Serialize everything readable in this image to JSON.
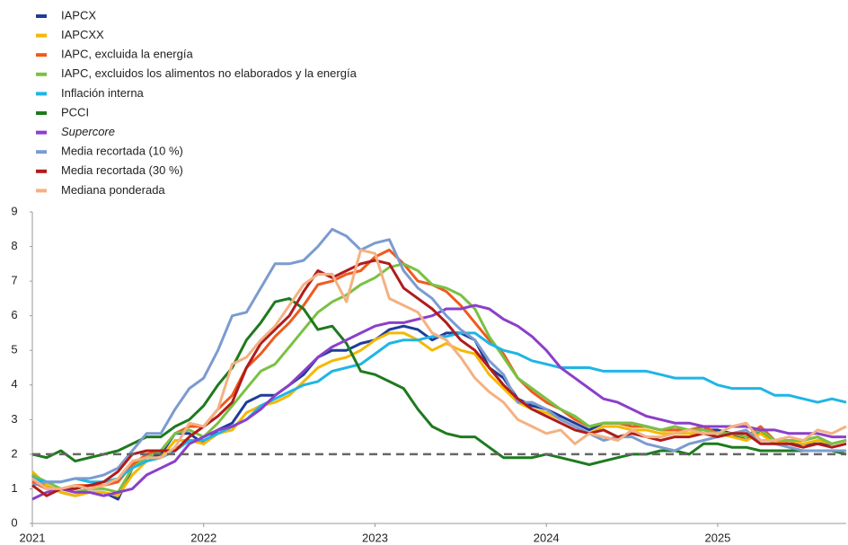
{
  "chart_data": {
    "type": "line",
    "categories": [
      "2021",
      null,
      null,
      null,
      null,
      null,
      null,
      null,
      null,
      null,
      null,
      null,
      "2022",
      null,
      null,
      null,
      null,
      null,
      null,
      null,
      null,
      null,
      null,
      null,
      "2023",
      null,
      null,
      null,
      null,
      null,
      null,
      null,
      null,
      null,
      null,
      null,
      "2024",
      null,
      null,
      null,
      null,
      null,
      null,
      null,
      null,
      null,
      null,
      null,
      "2025",
      null,
      null,
      null,
      null,
      null,
      null,
      null,
      null,
      null
    ],
    "ylim": [
      0,
      9
    ],
    "yticks": [
      0,
      1,
      2,
      3,
      4,
      5,
      6,
      7,
      8,
      9
    ],
    "reference_line": 2,
    "reference_color": "#666666",
    "series": [
      {
        "name": "IAPCX",
        "color": "#1f3c99",
        "values": [
          1.4,
          1.1,
          0.9,
          0.8,
          0.9,
          0.9,
          0.7,
          1.6,
          1.9,
          2.0,
          2.6,
          2.6,
          2.3,
          2.7,
          2.9,
          3.5,
          3.7,
          3.7,
          4.0,
          4.3,
          4.8,
          5.0,
          5.0,
          5.2,
          5.3,
          5.6,
          5.7,
          5.6,
          5.3,
          5.5,
          5.5,
          5.3,
          4.5,
          4.2,
          3.6,
          3.4,
          3.3,
          3.1,
          2.9,
          2.7,
          2.9,
          2.9,
          2.9,
          2.8,
          2.7,
          2.7,
          2.7,
          2.7,
          2.7,
          2.6,
          2.4,
          2.7,
          2.3,
          2.3,
          2.3,
          2.3,
          2.3,
          2.4
        ]
      },
      {
        "name": "IAPCXX",
        "color": "#f5b800",
        "values": [
          1.5,
          1.1,
          0.9,
          0.8,
          0.9,
          0.9,
          0.8,
          1.4,
          1.8,
          1.9,
          2.4,
          2.4,
          2.3,
          2.6,
          2.7,
          3.2,
          3.4,
          3.5,
          3.7,
          4.1,
          4.5,
          4.7,
          4.8,
          5.0,
          5.3,
          5.5,
          5.5,
          5.3,
          5.0,
          5.2,
          5.0,
          4.9,
          4.3,
          3.9,
          3.5,
          3.3,
          3.2,
          3.0,
          2.8,
          2.6,
          2.8,
          2.8,
          2.7,
          2.7,
          2.6,
          2.6,
          2.6,
          2.6,
          2.6,
          2.5,
          2.4,
          2.6,
          2.3,
          2.4,
          2.3,
          2.4,
          2.3,
          2.4
        ]
      },
      {
        "name": "IAPC, excluida la energía",
        "color": "#f05a1e",
        "values": [
          1.2,
          1.0,
          1.0,
          1.1,
          1.1,
          1.1,
          1.2,
          1.7,
          2.0,
          2.1,
          2.6,
          2.8,
          2.8,
          3.3,
          3.7,
          4.5,
          4.9,
          5.4,
          5.8,
          6.3,
          6.9,
          7.0,
          7.2,
          7.3,
          7.7,
          7.9,
          7.5,
          7.0,
          6.9,
          6.7,
          6.3,
          5.8,
          5.3,
          4.9,
          4.2,
          3.8,
          3.5,
          3.3,
          3.0,
          2.8,
          2.9,
          2.9,
          2.8,
          2.8,
          2.7,
          2.7,
          2.7,
          2.8,
          2.6,
          2.6,
          2.5,
          2.8,
          2.4,
          2.4,
          2.4,
          2.5,
          2.3,
          2.4
        ]
      },
      {
        "name": "IAPC, excluidos los alimentos no elaborados y la energía",
        "color": "#7ac143",
        "values": [
          1.4,
          1.2,
          1.0,
          0.9,
          1.0,
          1.0,
          0.9,
          1.6,
          1.9,
          2.1,
          2.6,
          2.7,
          2.5,
          2.9,
          3.4,
          3.9,
          4.4,
          4.6,
          5.1,
          5.6,
          6.1,
          6.4,
          6.6,
          6.9,
          7.1,
          7.4,
          7.5,
          7.3,
          6.9,
          6.8,
          6.6,
          6.2,
          5.4,
          4.8,
          4.2,
          3.9,
          3.6,
          3.3,
          3.1,
          2.8,
          2.9,
          2.9,
          2.9,
          2.8,
          2.7,
          2.8,
          2.7,
          2.7,
          2.6,
          2.6,
          2.5,
          2.7,
          2.4,
          2.4,
          2.4,
          2.5,
          2.3,
          2.4
        ]
      },
      {
        "name": "Inflación interna",
        "color": "#1fb5e6",
        "values": [
          1.3,
          1.2,
          1.2,
          1.3,
          1.2,
          1.2,
          1.3,
          1.6,
          1.8,
          1.9,
          2.1,
          2.4,
          2.4,
          2.6,
          2.8,
          3.0,
          3.4,
          3.6,
          3.8,
          4.0,
          4.1,
          4.4,
          4.5,
          4.6,
          4.9,
          5.2,
          5.3,
          5.3,
          5.4,
          5.4,
          5.5,
          5.5,
          5.2,
          5.0,
          4.9,
          4.7,
          4.6,
          4.5,
          4.5,
          4.5,
          4.4,
          4.4,
          4.4,
          4.4,
          4.3,
          4.2,
          4.2,
          4.2,
          4.0,
          3.9,
          3.9,
          3.9,
          3.7,
          3.7,
          3.6,
          3.5,
          3.6,
          3.5
        ]
      },
      {
        "name": "PCCI",
        "color": "#1e7a1e",
        "values": [
          2.0,
          1.9,
          2.1,
          1.8,
          1.9,
          2.0,
          2.1,
          2.3,
          2.5,
          2.5,
          2.8,
          3.0,
          3.4,
          4.0,
          4.5,
          5.3,
          5.8,
          6.4,
          6.5,
          6.2,
          5.6,
          5.7,
          5.2,
          4.4,
          4.3,
          4.1,
          3.9,
          3.3,
          2.8,
          2.6,
          2.5,
          2.5,
          2.2,
          1.9,
          1.9,
          1.9,
          2.0,
          1.9,
          1.8,
          1.7,
          1.8,
          1.9,
          2.0,
          2.0,
          2.1,
          2.1,
          2.0,
          2.3,
          2.3,
          2.2,
          2.2,
          2.1,
          2.1,
          2.1,
          2.1,
          2.1,
          2.1,
          2.0
        ]
      },
      {
        "name": "Supercore",
        "color": "#8b3fc9",
        "values": [
          0.7,
          0.9,
          1.0,
          0.9,
          0.9,
          0.8,
          0.9,
          1.0,
          1.4,
          1.6,
          1.8,
          2.3,
          2.5,
          2.7,
          2.8,
          3.0,
          3.3,
          3.7,
          4.0,
          4.4,
          4.8,
          5.1,
          5.3,
          5.5,
          5.7,
          5.8,
          5.8,
          5.9,
          6.0,
          6.2,
          6.2,
          6.3,
          6.2,
          5.9,
          5.7,
          5.4,
          5.0,
          4.5,
          4.2,
          3.9,
          3.6,
          3.5,
          3.3,
          3.1,
          3.0,
          2.9,
          2.9,
          2.8,
          2.8,
          2.8,
          2.8,
          2.7,
          2.7,
          2.6,
          2.6,
          2.6,
          2.5,
          2.5
        ]
      },
      {
        "name": "Media recortada (10 %)",
        "color": "#7b9bd0",
        "values": [
          1.1,
          1.2,
          1.2,
          1.3,
          1.3,
          1.4,
          1.6,
          2.1,
          2.6,
          2.6,
          3.3,
          3.9,
          4.2,
          5.0,
          6.0,
          6.1,
          6.8,
          7.5,
          7.5,
          7.6,
          8.0,
          8.5,
          8.3,
          7.9,
          8.1,
          8.2,
          7.3,
          6.8,
          6.5,
          6.0,
          5.6,
          5.3,
          4.7,
          4.3,
          3.5,
          3.5,
          3.3,
          3.0,
          2.8,
          2.6,
          2.4,
          2.5,
          2.5,
          2.3,
          2.2,
          2.1,
          2.3,
          2.4,
          2.5,
          2.6,
          2.7,
          2.3,
          2.3,
          2.2,
          2.1,
          2.1,
          2.1,
          2.1
        ]
      },
      {
        "name": "Media recortada (30 %)",
        "color": "#b01c1c",
        "values": [
          1.1,
          0.8,
          1.0,
          1.0,
          1.1,
          1.2,
          1.5,
          2.0,
          2.1,
          2.1,
          2.1,
          2.5,
          2.8,
          3.1,
          3.5,
          4.5,
          5.2,
          5.6,
          6.0,
          6.7,
          7.3,
          7.1,
          7.3,
          7.5,
          7.6,
          7.5,
          6.8,
          6.5,
          6.2,
          5.8,
          5.3,
          5.0,
          4.5,
          4.0,
          3.6,
          3.3,
          3.1,
          2.9,
          2.7,
          2.6,
          2.7,
          2.5,
          2.6,
          2.5,
          2.4,
          2.5,
          2.5,
          2.6,
          2.5,
          2.6,
          2.6,
          2.3,
          2.3,
          2.3,
          2.2,
          2.3,
          2.2,
          2.3
        ]
      },
      {
        "name": "Mediana ponderada",
        "color": "#f4b183",
        "values": [
          1.3,
          1.0,
          1.0,
          1.1,
          1.0,
          1.1,
          1.3,
          1.8,
          1.9,
          1.9,
          2.2,
          2.9,
          2.8,
          3.3,
          4.6,
          4.8,
          5.3,
          5.7,
          6.3,
          6.9,
          7.2,
          7.2,
          6.4,
          7.9,
          7.8,
          6.5,
          6.3,
          6.1,
          5.5,
          5.3,
          4.8,
          4.2,
          3.8,
          3.5,
          3.0,
          2.8,
          2.6,
          2.7,
          2.3,
          2.6,
          2.5,
          2.4,
          2.7,
          2.5,
          2.5,
          2.6,
          2.7,
          2.6,
          2.6,
          2.8,
          2.9,
          2.4,
          2.4,
          2.5,
          2.4,
          2.7,
          2.6,
          2.8
        ]
      }
    ]
  }
}
